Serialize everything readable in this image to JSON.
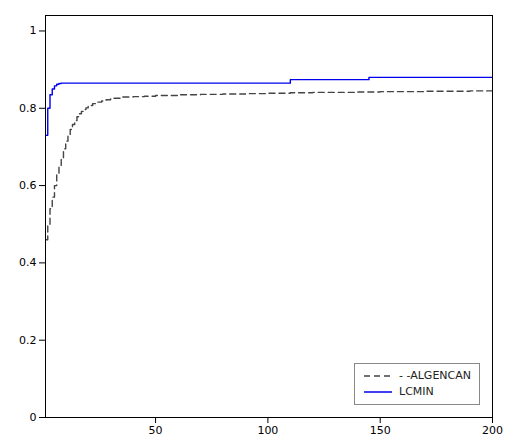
{
  "chart_data": {
    "type": "line",
    "xlim": [
      1,
      200
    ],
    "ylim": [
      0,
      1.04
    ],
    "xticks": [
      50,
      100,
      150,
      200
    ],
    "yticks": [
      0,
      0.2,
      0.4,
      0.6,
      0.8,
      1
    ],
    "grid": false,
    "legend": "lower right",
    "series": [
      {
        "name": "- -ALGENCAN",
        "color": "#444444",
        "line_style": "dashed",
        "x": [
          1,
          2,
          2,
          3,
          3,
          4,
          4,
          5,
          5,
          6,
          6,
          7,
          7,
          8,
          8,
          9,
          9,
          10,
          10,
          11,
          11,
          12,
          12,
          13,
          13,
          14,
          14,
          15,
          15,
          16,
          16,
          17,
          17,
          18,
          18,
          19,
          19,
          20,
          20,
          22,
          22,
          24,
          24,
          26,
          26,
          28,
          28,
          30,
          30,
          35,
          35,
          40,
          40,
          45,
          45,
          50,
          50,
          60,
          60,
          70,
          70,
          80,
          80,
          90,
          90,
          100,
          100,
          110,
          110,
          120,
          120,
          130,
          130,
          140,
          140,
          150,
          150,
          160,
          160,
          170,
          170,
          180,
          180,
          190,
          190,
          200
        ],
        "values": [
          0.46,
          0.46,
          0.5,
          0.5,
          0.54,
          0.54,
          0.57,
          0.57,
          0.6,
          0.6,
          0.63,
          0.63,
          0.65,
          0.65,
          0.67,
          0.67,
          0.695,
          0.695,
          0.715,
          0.715,
          0.73,
          0.73,
          0.745,
          0.745,
          0.758,
          0.758,
          0.768,
          0.768,
          0.778,
          0.778,
          0.786,
          0.786,
          0.792,
          0.792,
          0.797,
          0.797,
          0.801,
          0.801,
          0.807,
          0.807,
          0.812,
          0.812,
          0.816,
          0.816,
          0.819,
          0.819,
          0.822,
          0.822,
          0.826,
          0.826,
          0.829,
          0.829,
          0.83,
          0.83,
          0.831,
          0.831,
          0.833,
          0.833,
          0.835,
          0.835,
          0.836,
          0.836,
          0.837,
          0.837,
          0.838,
          0.838,
          0.839,
          0.839,
          0.84,
          0.84,
          0.841,
          0.841,
          0.841,
          0.841,
          0.842,
          0.842,
          0.843,
          0.843,
          0.843,
          0.843,
          0.844,
          0.844,
          0.844,
          0.844,
          0.845,
          0.845
        ]
      },
      {
        "name": "LCMIN",
        "color": "#0000ee",
        "line_style": "solid",
        "x": [
          1,
          2,
          2,
          3,
          3,
          4,
          4,
          5,
          5,
          6,
          6,
          7,
          7,
          8,
          8,
          10,
          10,
          12,
          12,
          15,
          15,
          110,
          110,
          145,
          145,
          200
        ],
        "values": [
          0.73,
          0.73,
          0.8,
          0.8,
          0.835,
          0.835,
          0.85,
          0.85,
          0.858,
          0.858,
          0.862,
          0.862,
          0.864,
          0.864,
          0.865,
          0.865,
          0.865,
          0.865,
          0.865,
          0.865,
          0.865,
          0.865,
          0.874,
          0.874,
          0.88,
          0.88
        ]
      }
    ]
  }
}
